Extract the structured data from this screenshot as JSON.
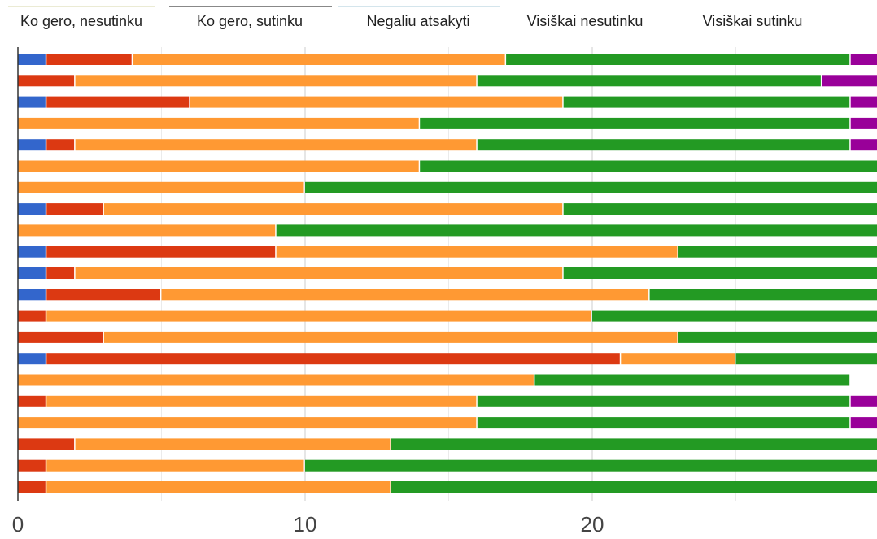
{
  "chart_data": {
    "type": "bar",
    "orientation": "horizontal",
    "stacked": true,
    "legend": {
      "placement": "top",
      "entries": [
        {
          "label": "Ko gero, nesutinku",
          "color": "#3366cc"
        },
        {
          "label": "Ko gero, sutinku",
          "color": "#dc3912"
        },
        {
          "label": "Negaliu atsakyti",
          "color": "#ff9933"
        },
        {
          "label": "Visiškai nesutinku",
          "color": "#239a23"
        },
        {
          "label": "Visiškai sutinku",
          "color": "#990099"
        }
      ]
    },
    "x_axis": {
      "ticks": [
        0,
        10,
        20
      ],
      "minor_ticks": [
        5,
        15,
        25
      ],
      "xlim": [
        0,
        30
      ],
      "grid": true
    },
    "categories": [
      "",
      "",
      "",
      "",
      "",
      "",
      "",
      "",
      "",
      "",
      "",
      "",
      "",
      "",
      "",
      "",
      "",
      "",
      "",
      "",
      ""
    ],
    "series": [
      {
        "color": "#3366cc",
        "values": [
          1,
          0,
          1,
          0,
          1,
          0,
          0,
          1,
          0,
          1,
          1,
          1,
          0,
          0,
          1,
          0,
          0,
          0,
          0,
          0,
          0
        ]
      },
      {
        "color": "#dc3912",
        "values": [
          3,
          2,
          5,
          0,
          1,
          0,
          0,
          2,
          0,
          8,
          1,
          4,
          1,
          3,
          20,
          0,
          1,
          0,
          2,
          1,
          1
        ]
      },
      {
        "color": "#ff9933",
        "values": [
          13,
          14,
          13,
          14,
          14,
          14,
          10,
          16,
          9,
          14,
          17,
          17,
          19,
          20,
          4,
          18,
          15,
          16,
          11,
          9,
          12
        ]
      },
      {
        "color": "#239a23",
        "values": [
          12,
          12,
          10,
          15,
          13,
          17,
          20,
          11,
          21,
          7,
          11,
          8,
          10,
          7,
          5,
          11,
          13,
          13,
          17,
          20,
          17
        ]
      },
      {
        "color": "#990099",
        "values": [
          1,
          2,
          1,
          1,
          1,
          0,
          0,
          0,
          0,
          0,
          0,
          0,
          0,
          0,
          0,
          0,
          1,
          1,
          0,
          0,
          0
        ]
      }
    ]
  }
}
